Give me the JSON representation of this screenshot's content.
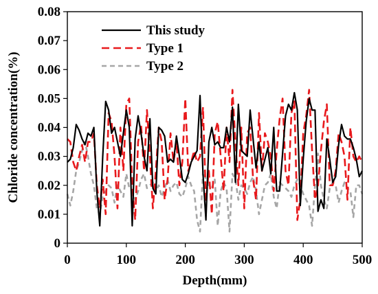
{
  "chart_data": {
    "type": "line",
    "title": "",
    "xlabel": "Depth(mm)",
    "ylabel": "Chloride concentration(%)",
    "xlim": [
      0,
      500
    ],
    "ylim": [
      0,
      0.08
    ],
    "xticks": [
      "0",
      "100",
      "200",
      "300",
      "400",
      "500"
    ],
    "yticks": [
      "0",
      "0.01",
      "0.02",
      "0.03",
      "0.04",
      "0.05",
      "0.06",
      "0.07",
      "0.08"
    ],
    "grid": false,
    "legend_position": "top-left",
    "series": [
      {
        "name": "This study",
        "color": "#000000",
        "dash": "solid",
        "x": [
          0,
          5,
          10,
          15,
          20,
          25,
          30,
          35,
          40,
          45,
          50,
          55,
          60,
          65,
          70,
          75,
          80,
          85,
          90,
          95,
          100,
          105,
          110,
          115,
          120,
          125,
          130,
          135,
          140,
          145,
          150,
          155,
          160,
          165,
          170,
          175,
          180,
          185,
          190,
          195,
          200,
          205,
          210,
          215,
          220,
          225,
          230,
          235,
          240,
          245,
          250,
          255,
          260,
          265,
          270,
          275,
          280,
          285,
          290,
          295,
          300,
          305,
          310,
          315,
          320,
          325,
          330,
          335,
          340,
          345,
          350,
          355,
          360,
          365,
          370,
          375,
          380,
          385,
          390,
          395,
          400,
          405,
          410,
          415,
          420,
          425,
          430,
          435,
          440,
          445,
          450,
          455,
          460,
          465,
          470,
          475,
          480,
          485,
          490,
          495,
          500
        ],
        "values": [
          0.028,
          0.029,
          0.033,
          0.041,
          0.039,
          0.036,
          0.034,
          0.038,
          0.037,
          0.04,
          0.018,
          0.006,
          0.03,
          0.049,
          0.046,
          0.038,
          0.04,
          0.035,
          0.03,
          0.038,
          0.046,
          0.04,
          0.006,
          0.036,
          0.044,
          0.038,
          0.03,
          0.025,
          0.043,
          0.019,
          0.017,
          0.04,
          0.039,
          0.037,
          0.028,
          0.029,
          0.028,
          0.037,
          0.03,
          0.022,
          0.021,
          0.024,
          0.028,
          0.03,
          0.032,
          0.051,
          0.024,
          0.008,
          0.035,
          0.04,
          0.034,
          0.035,
          0.033,
          0.033,
          0.04,
          0.035,
          0.047,
          0.021,
          0.048,
          0.032,
          0.031,
          0.03,
          0.046,
          0.036,
          0.026,
          0.035,
          0.025,
          0.029,
          0.033,
          0.024,
          0.04,
          0.018,
          0.018,
          0.031,
          0.044,
          0.048,
          0.046,
          0.052,
          0.046,
          0.013,
          0.029,
          0.042,
          0.05,
          0.046,
          0.046,
          0.011,
          0.015,
          0.012,
          0.036,
          0.029,
          0.021,
          0.023,
          0.034,
          0.041,
          0.037,
          0.036,
          0.036,
          0.033,
          0.029,
          0.023,
          0.025
        ]
      },
      {
        "name": "Type 1",
        "color": "#e8191c",
        "dash": "long-dash",
        "x": [
          0,
          5,
          10,
          15,
          20,
          25,
          30,
          35,
          40,
          45,
          50,
          55,
          60,
          65,
          70,
          75,
          80,
          85,
          90,
          95,
          100,
          105,
          110,
          115,
          120,
          125,
          130,
          135,
          140,
          145,
          150,
          155,
          160,
          165,
          170,
          175,
          180,
          185,
          190,
          195,
          200,
          205,
          210,
          215,
          220,
          225,
          230,
          235,
          240,
          245,
          250,
          255,
          260,
          265,
          270,
          275,
          280,
          285,
          290,
          295,
          300,
          305,
          310,
          315,
          320,
          325,
          330,
          335,
          340,
          345,
          350,
          355,
          360,
          365,
          370,
          375,
          380,
          385,
          390,
          395,
          400,
          405,
          410,
          415,
          420,
          425,
          430,
          435,
          440,
          445,
          450,
          455,
          460,
          465,
          470,
          475,
          480,
          485,
          490,
          495,
          500
        ],
        "values": [
          0.036,
          0.035,
          0.028,
          0.025,
          0.03,
          0.034,
          0.028,
          0.035,
          0.035,
          0.038,
          0.02,
          0.012,
          0.022,
          0.01,
          0.045,
          0.042,
          0.03,
          0.012,
          0.04,
          0.025,
          0.048,
          0.05,
          0.02,
          0.008,
          0.035,
          0.041,
          0.025,
          0.046,
          0.03,
          0.012,
          0.025,
          0.04,
          0.035,
          0.015,
          0.022,
          0.038,
          0.028,
          0.035,
          0.02,
          0.028,
          0.05,
          0.025,
          0.028,
          0.032,
          0.028,
          0.03,
          0.047,
          0.015,
          0.025,
          0.01,
          0.038,
          0.042,
          0.03,
          0.018,
          0.04,
          0.028,
          0.053,
          0.035,
          0.02,
          0.04,
          0.012,
          0.038,
          0.04,
          0.022,
          0.015,
          0.045,
          0.025,
          0.038,
          0.035,
          0.03,
          0.018,
          0.032,
          0.043,
          0.05,
          0.025,
          0.02,
          0.045,
          0.049,
          0.008,
          0.015,
          0.038,
          0.044,
          0.053,
          0.032,
          0.015,
          0.02,
          0.032,
          0.042,
          0.048,
          0.02,
          0.02,
          0.025,
          0.038,
          0.035,
          0.03,
          0.015,
          0.04,
          0.03,
          0.028,
          0.03,
          0.028
        ]
      },
      {
        "name": "Type 2",
        "color": "#a6a6a6",
        "dash": "dash",
        "x": [
          0,
          5,
          10,
          15,
          20,
          25,
          30,
          35,
          40,
          45,
          50,
          55,
          60,
          65,
          70,
          75,
          80,
          85,
          90,
          95,
          100,
          105,
          110,
          115,
          120,
          125,
          130,
          135,
          140,
          145,
          150,
          155,
          160,
          165,
          170,
          175,
          180,
          185,
          190,
          195,
          200,
          205,
          210,
          215,
          220,
          225,
          230,
          235,
          240,
          245,
          250,
          255,
          260,
          265,
          270,
          275,
          280,
          285,
          290,
          295,
          300,
          305,
          310,
          315,
          320,
          325,
          330,
          335,
          340,
          345,
          350,
          355,
          360,
          365,
          370,
          375,
          380,
          385,
          390,
          395,
          400,
          405,
          410,
          415,
          420,
          425,
          430,
          435,
          440,
          445,
          450,
          455,
          460,
          465,
          470,
          475,
          480,
          485,
          490,
          495,
          500
        ],
        "values": [
          0.017,
          0.013,
          0.018,
          0.025,
          0.028,
          0.032,
          0.035,
          0.03,
          0.024,
          0.02,
          0.012,
          0.01,
          0.016,
          0.018,
          0.02,
          0.019,
          0.014,
          0.02,
          0.018,
          0.016,
          0.024,
          0.019,
          0.018,
          0.015,
          0.018,
          0.022,
          0.024,
          0.019,
          0.02,
          0.021,
          0.018,
          0.02,
          0.016,
          0.019,
          0.022,
          0.018,
          0.02,
          0.021,
          0.017,
          0.016,
          0.019,
          0.023,
          0.02,
          0.018,
          0.008,
          0.004,
          0.025,
          0.022,
          0.02,
          0.019,
          0.022,
          0.006,
          0.018,
          0.021,
          0.019,
          0.004,
          0.024,
          0.022,
          0.015,
          0.02,
          0.019,
          0.017,
          0.021,
          0.023,
          0.018,
          0.01,
          0.015,
          0.02,
          0.021,
          0.024,
          0.016,
          0.012,
          0.021,
          0.02,
          0.019,
          0.018,
          0.016,
          0.02,
          0.022,
          0.02,
          0.017,
          0.015,
          0.013,
          0.006,
          0.02,
          0.031,
          0.02,
          0.015,
          0.012,
          0.019,
          0.021,
          0.02,
          0.014,
          0.018,
          0.021,
          0.019,
          0.018,
          0.009,
          0.02,
          0.02,
          0.017
        ]
      }
    ]
  }
}
